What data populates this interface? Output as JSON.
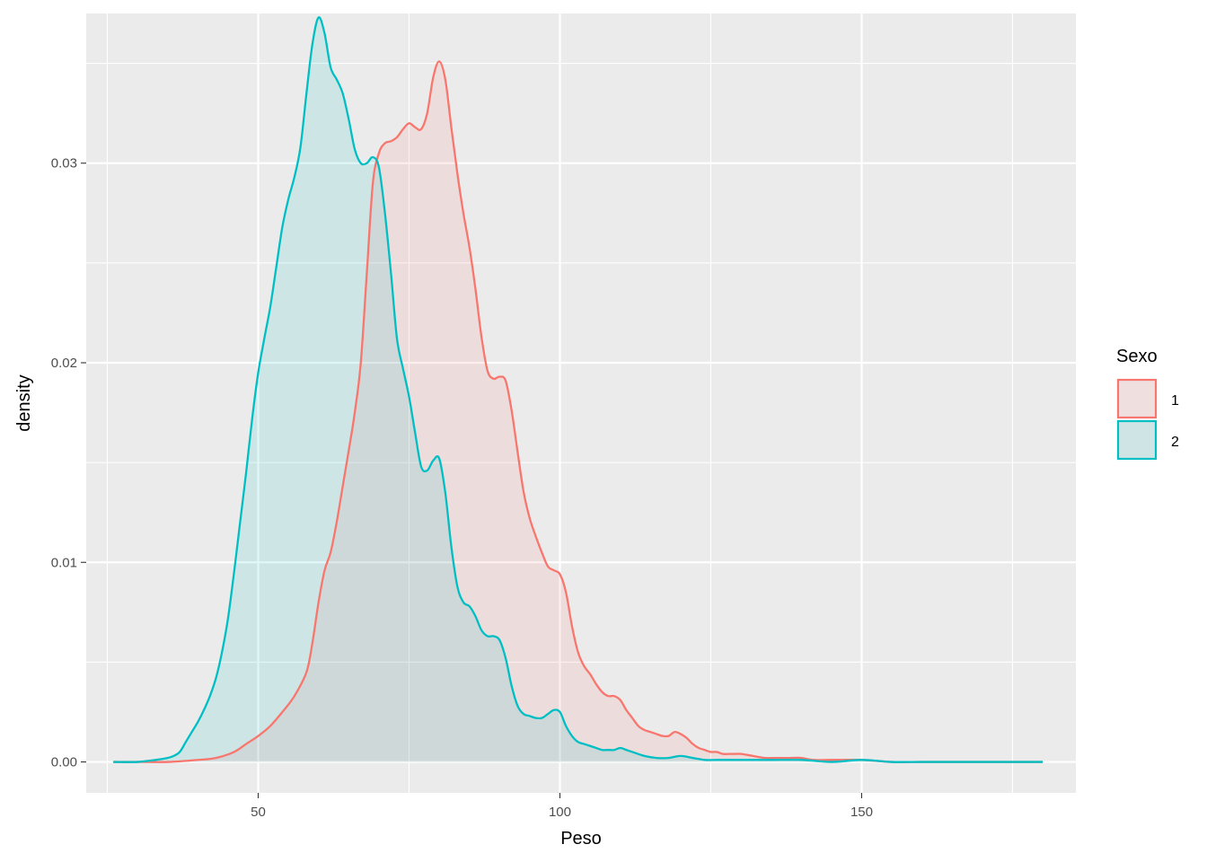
{
  "chart_data": {
    "type": "area",
    "title": "",
    "xlabel": "Peso",
    "ylabel": "density",
    "xlim": [
      21.5,
      185.5
    ],
    "ylim": [
      -0.00155,
      0.0375
    ],
    "x_ticks": [
      50,
      100,
      150
    ],
    "x_minor_ticks": [
      25,
      75,
      125,
      175
    ],
    "y_ticks": [
      0.0,
      0.01,
      0.02,
      0.03
    ],
    "y_tick_labels": [
      "0.00",
      "0.01",
      "0.02",
      "0.03"
    ],
    "y_minor_ticks": [
      0.005,
      0.015,
      0.025,
      0.035
    ],
    "grid": true,
    "panel_background": "#ebebeb",
    "grid_color": "#ffffff",
    "legend": {
      "title": "Sexo",
      "position": "right"
    },
    "series": [
      {
        "name": "1",
        "color": "#f8766d",
        "fill": "#f8766d",
        "fill_opacity": 0.12,
        "x": [
          26,
          30,
          35,
          40,
          43,
          46,
          48,
          50,
          52,
          54,
          56,
          58,
          59,
          60,
          61,
          62,
          63,
          64,
          65,
          66,
          67,
          68,
          69,
          70,
          71,
          72,
          73,
          74,
          75,
          76,
          77,
          78,
          79,
          80,
          81,
          82,
          83,
          84,
          85,
          86,
          87,
          88,
          89,
          90,
          91,
          92,
          93,
          94,
          95,
          96,
          97,
          98,
          99,
          100,
          101,
          102,
          103,
          104,
          105,
          106,
          107,
          108,
          109,
          110,
          111,
          112,
          113,
          114,
          115,
          116,
          117,
          118,
          119,
          120,
          121,
          122,
          123,
          124,
          125,
          126,
          127,
          128,
          129,
          130,
          132,
          134,
          136,
          138,
          140,
          142,
          145,
          150,
          155,
          160,
          165,
          170,
          175,
          180
        ],
        "y": [
          0.0,
          0.0,
          0.0,
          0.0001,
          0.0002,
          0.0005,
          0.0009,
          0.0013,
          0.0018,
          0.0025,
          0.0033,
          0.0045,
          0.006,
          0.008,
          0.0096,
          0.0105,
          0.012,
          0.0138,
          0.0156,
          0.0175,
          0.02,
          0.0245,
          0.029,
          0.0305,
          0.031,
          0.0311,
          0.0313,
          0.0317,
          0.032,
          0.0318,
          0.0317,
          0.0325,
          0.0343,
          0.0351,
          0.0342,
          0.0318,
          0.0295,
          0.0275,
          0.0258,
          0.0237,
          0.0213,
          0.0196,
          0.0192,
          0.0193,
          0.0191,
          0.0176,
          0.0155,
          0.0135,
          0.0122,
          0.0113,
          0.0105,
          0.0098,
          0.0096,
          0.0094,
          0.0085,
          0.0068,
          0.0055,
          0.0048,
          0.0044,
          0.0039,
          0.0035,
          0.0033,
          0.0033,
          0.0031,
          0.0026,
          0.0022,
          0.0018,
          0.0016,
          0.0015,
          0.0014,
          0.0013,
          0.0013,
          0.0015,
          0.0014,
          0.0012,
          0.0009,
          0.0007,
          0.0006,
          0.0005,
          0.0005,
          0.0004,
          0.0004,
          0.0004,
          0.0004,
          0.0003,
          0.0002,
          0.0002,
          0.0002,
          0.0002,
          0.0001,
          0.0001,
          0.0001,
          0.0,
          0.0,
          0.0,
          0.0,
          0.0,
          0.0
        ]
      },
      {
        "name": "2",
        "color": "#00bfc4",
        "fill": "#00bfc4",
        "fill_opacity": 0.12,
        "x": [
          26,
          30,
          33,
          35,
          36,
          37,
          38,
          39,
          40,
          41,
          42,
          43,
          44,
          45,
          46,
          47,
          48,
          49,
          50,
          51,
          52,
          53,
          54,
          55,
          56,
          57,
          58,
          59,
          60,
          61,
          62,
          63,
          64,
          65,
          66,
          67,
          68,
          69,
          70,
          71,
          72,
          73,
          74,
          75,
          76,
          77,
          78,
          79,
          80,
          81,
          82,
          83,
          84,
          85,
          86,
          87,
          88,
          89,
          90,
          91,
          92,
          93,
          94,
          95,
          96,
          97,
          98,
          99,
          100,
          101,
          102,
          103,
          104,
          105,
          106,
          107,
          108,
          109,
          110,
          111,
          112,
          114,
          116,
          118,
          120,
          122,
          124,
          126,
          128,
          130,
          135,
          140,
          145,
          150,
          155,
          160,
          170,
          180
        ],
        "y": [
          0.0,
          0.0,
          0.0001,
          0.0002,
          0.0003,
          0.0005,
          0.001,
          0.0015,
          0.002,
          0.0026,
          0.0033,
          0.0042,
          0.0055,
          0.0072,
          0.0095,
          0.012,
          0.0145,
          0.0172,
          0.0195,
          0.0212,
          0.0228,
          0.0248,
          0.0268,
          0.0282,
          0.0293,
          0.0308,
          0.0335,
          0.036,
          0.0373,
          0.0365,
          0.0348,
          0.0342,
          0.0335,
          0.0322,
          0.0307,
          0.03,
          0.03,
          0.0303,
          0.0298,
          0.0275,
          0.0245,
          0.0212,
          0.0197,
          0.0183,
          0.0165,
          0.0148,
          0.0146,
          0.0151,
          0.0152,
          0.0135,
          0.0108,
          0.0088,
          0.008,
          0.0078,
          0.0073,
          0.0066,
          0.0063,
          0.0063,
          0.0061,
          0.0052,
          0.0038,
          0.0028,
          0.0024,
          0.0023,
          0.0022,
          0.0022,
          0.0024,
          0.0026,
          0.0025,
          0.0018,
          0.0013,
          0.001,
          0.0009,
          0.0008,
          0.0007,
          0.0006,
          0.0006,
          0.0006,
          0.0007,
          0.0006,
          0.0005,
          0.0003,
          0.0002,
          0.0002,
          0.0003,
          0.0002,
          0.0001,
          0.0001,
          0.0001,
          0.0001,
          0.0001,
          0.0001,
          0.0,
          0.0001,
          0.0,
          0.0,
          0.0,
          0.0
        ]
      }
    ]
  }
}
